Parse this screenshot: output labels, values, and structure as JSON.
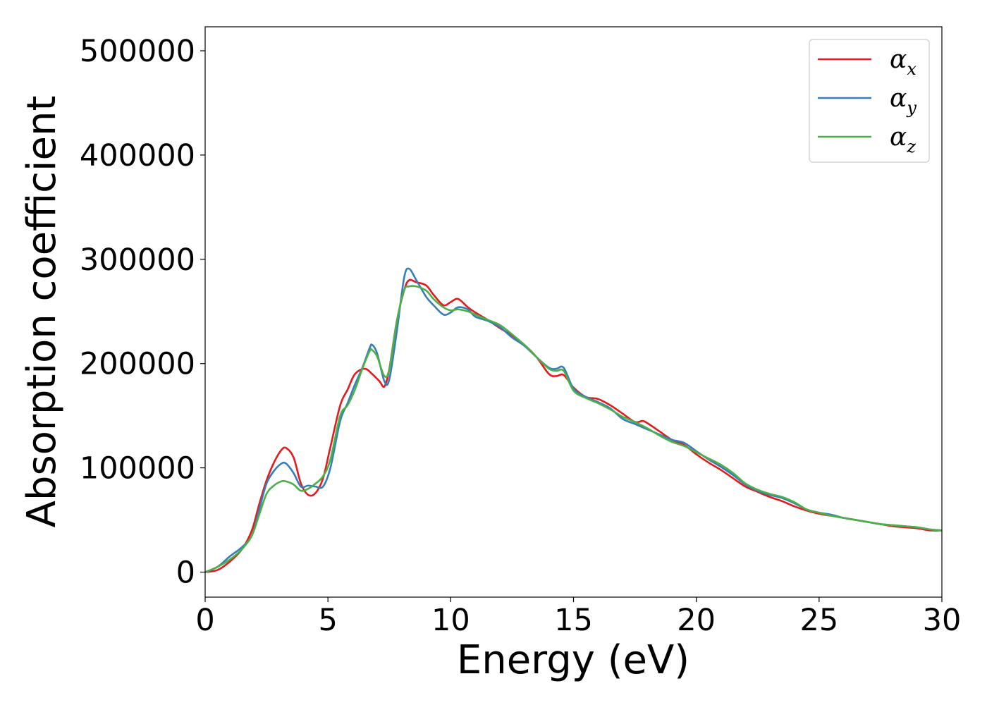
{
  "chart_data": {
    "type": "line",
    "title": "",
    "xlabel": "Energy (eV)",
    "ylabel": "Absorption coefficient",
    "xlim": [
      0,
      30
    ],
    "ylim": [
      -24000,
      523000
    ],
    "xticks": [
      0,
      5,
      10,
      15,
      20,
      25,
      30
    ],
    "yticks": [
      0,
      100000,
      200000,
      300000,
      400000,
      500000
    ],
    "grid": false,
    "legend_position": "top-right",
    "series": [
      {
        "name": "α",
        "subscript": "x",
        "color": "#e41a1c",
        "x": [
          0,
          0.5,
          1.0,
          1.5,
          1.9,
          2.2,
          2.5,
          2.8,
          3.1,
          3.3,
          3.6,
          3.9,
          4.2,
          4.5,
          4.8,
          5.1,
          5.5,
          5.8,
          6.1,
          6.5,
          6.8,
          7.1,
          7.3,
          7.5,
          7.8,
          8.1,
          8.3,
          8.6,
          9.0,
          9.3,
          9.7,
          10.0,
          10.3,
          10.7,
          11.0,
          11.5,
          12.0,
          12.5,
          13.0,
          13.5,
          14.0,
          14.3,
          14.6,
          15.0,
          15.5,
          16.0,
          16.5,
          17.0,
          17.5,
          17.8,
          18.0,
          18.5,
          19.0,
          19.5,
          20.0,
          20.5,
          21.0,
          21.5,
          22.0,
          22.5,
          23.0,
          23.5,
          24.0,
          24.5,
          25.0,
          25.5,
          26.0,
          26.5,
          27.0,
          27.5,
          28.0,
          28.5,
          29.0,
          29.5,
          30.0
        ],
        "values": [
          0,
          2000,
          10000,
          22000,
          40000,
          65000,
          88000,
          105000,
          117000,
          119000,
          110000,
          85000,
          74000,
          76000,
          90000,
          120000,
          160000,
          175000,
          190000,
          195000,
          190000,
          183000,
          178000,
          195000,
          240000,
          270000,
          280000,
          278000,
          275000,
          266000,
          256000,
          259000,
          262000,
          254000,
          249000,
          242000,
          234000,
          227000,
          218000,
          206000,
          190000,
          188000,
          189000,
          177000,
          168000,
          166000,
          160000,
          152000,
          144000,
          145000,
          143000,
          135000,
          127000,
          122000,
          113000,
          105000,
          98000,
          90000,
          82000,
          77000,
          72000,
          68000,
          63000,
          59000,
          56000,
          54000,
          52000,
          50000,
          48000,
          46000,
          44000,
          43000,
          42000,
          40000,
          40000
        ]
      },
      {
        "name": "α",
        "subscript": "y",
        "color": "#377eb8",
        "x": [
          0,
          0.5,
          1.0,
          1.5,
          1.9,
          2.2,
          2.5,
          2.8,
          3.1,
          3.3,
          3.6,
          3.9,
          4.2,
          4.5,
          4.8,
          5.1,
          5.5,
          5.8,
          6.1,
          6.4,
          6.7,
          6.8,
          7.0,
          7.3,
          7.5,
          7.8,
          8.1,
          8.3,
          8.6,
          9.0,
          9.3,
          9.7,
          10.0,
          10.3,
          10.7,
          11.0,
          11.5,
          12.0,
          12.5,
          13.0,
          13.5,
          14.0,
          14.3,
          14.6,
          15.0,
          15.5,
          16.0,
          16.5,
          17.0,
          17.5,
          18.0,
          18.5,
          19.0,
          19.5,
          20.0,
          20.5,
          21.0,
          21.5,
          22.0,
          22.5,
          23.0,
          23.5,
          24.0,
          24.5,
          25.0,
          25.5,
          26.0,
          26.5,
          27.0,
          27.5,
          28.0,
          28.5,
          29.0,
          29.5,
          30.0
        ],
        "values": [
          0,
          5000,
          15000,
          24000,
          35000,
          60000,
          85000,
          97000,
          104000,
          104000,
          95000,
          82000,
          83000,
          82000,
          82000,
          100000,
          145000,
          162000,
          180000,
          196000,
          215000,
          218000,
          210000,
          183000,
          185000,
          230000,
          282000,
          291000,
          280000,
          264000,
          256000,
          247000,
          249000,
          254000,
          252000,
          245000,
          241000,
          235000,
          225000,
          217000,
          206000,
          196000,
          195000,
          196000,
          176000,
          168000,
          163000,
          157000,
          147000,
          142000,
          137000,
          132000,
          127000,
          124000,
          116000,
          108000,
          101000,
          93000,
          84000,
          78000,
          74000,
          71000,
          66000,
          60000,
          57000,
          55000,
          52000,
          50000,
          48000,
          46000,
          45000,
          44000,
          43000,
          41000,
          40000
        ]
      },
      {
        "name": "α",
        "subscript": "z",
        "color": "#4daf4a",
        "x": [
          0,
          0.5,
          1.0,
          1.5,
          1.9,
          2.2,
          2.5,
          2.8,
          3.1,
          3.3,
          3.6,
          3.9,
          4.2,
          4.5,
          4.8,
          5.1,
          5.5,
          5.8,
          6.1,
          6.4,
          6.7,
          6.8,
          7.0,
          7.3,
          7.5,
          7.8,
          8.1,
          8.3,
          8.6,
          9.0,
          9.3,
          9.7,
          10.0,
          10.3,
          10.7,
          11.0,
          11.5,
          12.0,
          12.5,
          13.0,
          13.5,
          14.0,
          14.3,
          14.6,
          15.0,
          15.5,
          16.0,
          16.5,
          17.0,
          17.5,
          18.0,
          18.5,
          19.0,
          19.5,
          20.0,
          20.5,
          21.0,
          21.5,
          22.0,
          22.5,
          23.0,
          23.5,
          24.0,
          24.5,
          25.0,
          25.5,
          26.0,
          26.5,
          27.0,
          27.5,
          28.0,
          28.5,
          29.0,
          29.5,
          30.0
        ],
        "values": [
          0,
          5000,
          12000,
          22000,
          35000,
          55000,
          75000,
          83000,
          87000,
          87000,
          84000,
          78000,
          80000,
          85000,
          92000,
          108000,
          150000,
          160000,
          175000,
          195000,
          212000,
          213000,
          207000,
          188000,
          195000,
          240000,
          270000,
          274000,
          274000,
          270000,
          262000,
          254000,
          251000,
          252000,
          250000,
          247000,
          242000,
          237000,
          228000,
          218000,
          206000,
          195000,
          193000,
          193000,
          174000,
          167000,
          162000,
          156000,
          149000,
          144000,
          138000,
          131000,
          125000,
          121000,
          115000,
          109000,
          103000,
          95000,
          85000,
          79000,
          75000,
          72000,
          67000,
          60000,
          57000,
          54000,
          52000,
          50000,
          48000,
          46000,
          45000,
          44000,
          43000,
          41000,
          40000
        ]
      }
    ]
  }
}
